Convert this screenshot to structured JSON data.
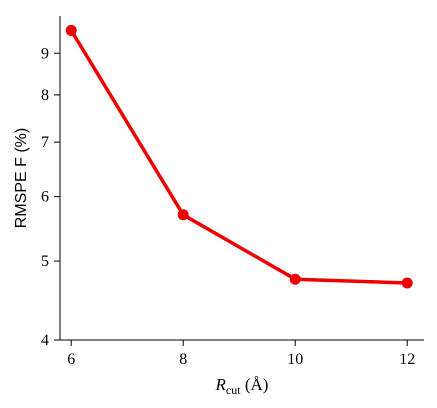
{
  "chart_data": {
    "type": "line",
    "x": [
      6,
      8,
      10,
      12
    ],
    "series": [
      {
        "values": [
          9.6,
          5.7,
          4.75,
          4.7
        ]
      }
    ],
    "xticks": [
      6,
      8,
      10,
      12
    ],
    "xtick_labels": [
      "6",
      "8",
      "10",
      "12"
    ],
    "yticks": [
      4,
      5,
      6,
      7,
      8,
      9
    ],
    "ytick_labels": [
      "4",
      "5",
      "6",
      "7",
      "8",
      "9"
    ],
    "yscale": "log",
    "ylabel": "RMSPE F (%)",
    "xlabel": {
      "symbol": "R",
      "subscript": "cut",
      "unit": " (Å)"
    },
    "xlim": [
      5.8,
      12.3
    ],
    "ylim": [
      4,
      10
    ],
    "grid": false,
    "legend": "none",
    "color": "#ee0000"
  }
}
